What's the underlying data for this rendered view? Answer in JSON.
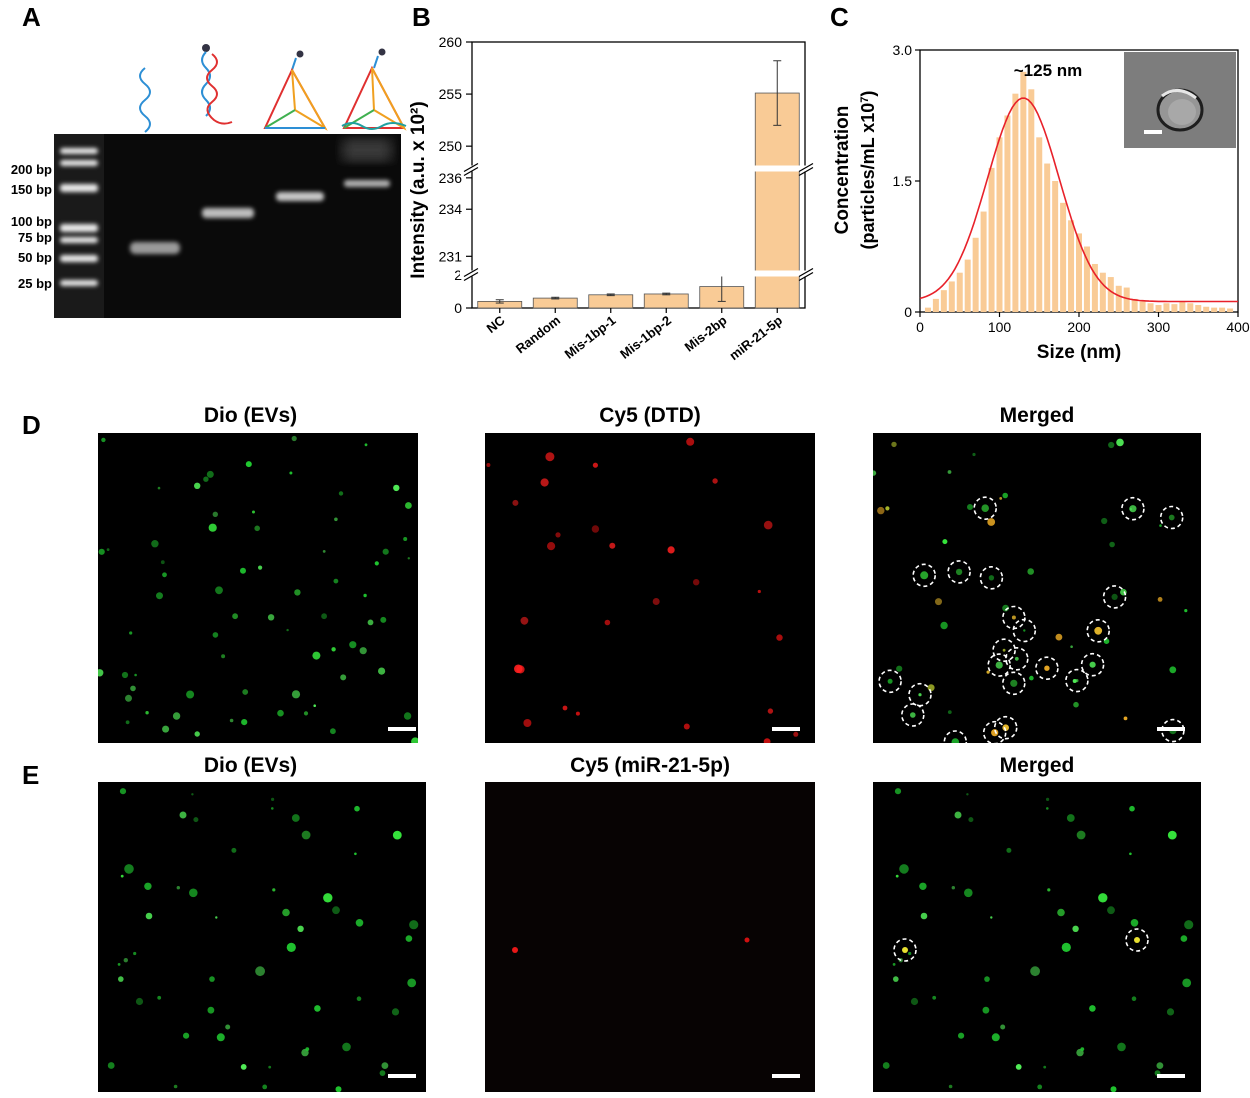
{
  "panels": {
    "A": "A",
    "B": "B",
    "C": "C",
    "D": "D",
    "E": "E"
  },
  "gel": {
    "ladder_labels": [
      "200 bp",
      "150 bp",
      "100 bp",
      "75 bp",
      "50 bp",
      "25 bp"
    ]
  },
  "chart_data": [
    {
      "type": "bar",
      "panel": "B",
      "ylabel": "Intensity (a.u. x 10²)",
      "categories": [
        "NC",
        "Random",
        "Mis-1bp-1",
        "Mis-1bp-2",
        "Mis-2bp",
        "miR-21-5p"
      ],
      "values": [
        0.4,
        0.6,
        0.8,
        0.85,
        1.3,
        255.1
      ],
      "errors": [
        0.1,
        0.05,
        0.05,
        0.05,
        0.9,
        3.1
      ],
      "axis_breaks": [
        [
          2,
          230
        ],
        [
          236.5,
          248
        ]
      ],
      "yticks": [
        0,
        2,
        231,
        234,
        236,
        250,
        255,
        260
      ],
      "ylim": [
        0,
        260
      ],
      "bar_color": "#f9cb96"
    },
    {
      "type": "bar",
      "panel": "C",
      "annotation": "~125 nm",
      "xlabel": "Size (nm)",
      "ylabel": "Concentration (particles/mL x10⁷)",
      "xlim": [
        0,
        400
      ],
      "ylim": [
        0,
        3.0
      ],
      "xticks": [
        0,
        100,
        200,
        300,
        400
      ],
      "yticks": [
        0,
        1.5,
        3.0
      ],
      "x": [
        10,
        20,
        30,
        40,
        50,
        60,
        70,
        80,
        90,
        100,
        110,
        120,
        130,
        140,
        150,
        160,
        170,
        180,
        190,
        200,
        210,
        220,
        230,
        240,
        250,
        260,
        270,
        280,
        290,
        300,
        310,
        320,
        330,
        340,
        350,
        360,
        370,
        380,
        390
      ],
      "values": [
        0.05,
        0.15,
        0.25,
        0.35,
        0.45,
        0.6,
        0.85,
        1.15,
        1.65,
        2.0,
        2.25,
        2.5,
        2.75,
        2.55,
        2.0,
        1.7,
        1.5,
        1.25,
        1.05,
        0.9,
        0.75,
        0.55,
        0.45,
        0.4,
        0.3,
        0.28,
        0.15,
        0.12,
        0.1,
        0.08,
        0.1,
        0.09,
        0.12,
        0.1,
        0.08,
        0.06,
        0.05,
        0.05,
        0.04
      ],
      "fit": {
        "type": "gaussian",
        "peak_x": 130,
        "peak_y": 2.45,
        "sigma": 45,
        "baseline": 0.12,
        "color": "#e8212a"
      },
      "bar_color": "#f9cb96"
    }
  ],
  "microscopy": {
    "D": [
      "Dio (EVs)",
      "Cy5 (DTD)",
      "Merged"
    ],
    "E": [
      "Dio (EVs)",
      "Cy5 (miR-21-5p)",
      "Merged"
    ]
  }
}
